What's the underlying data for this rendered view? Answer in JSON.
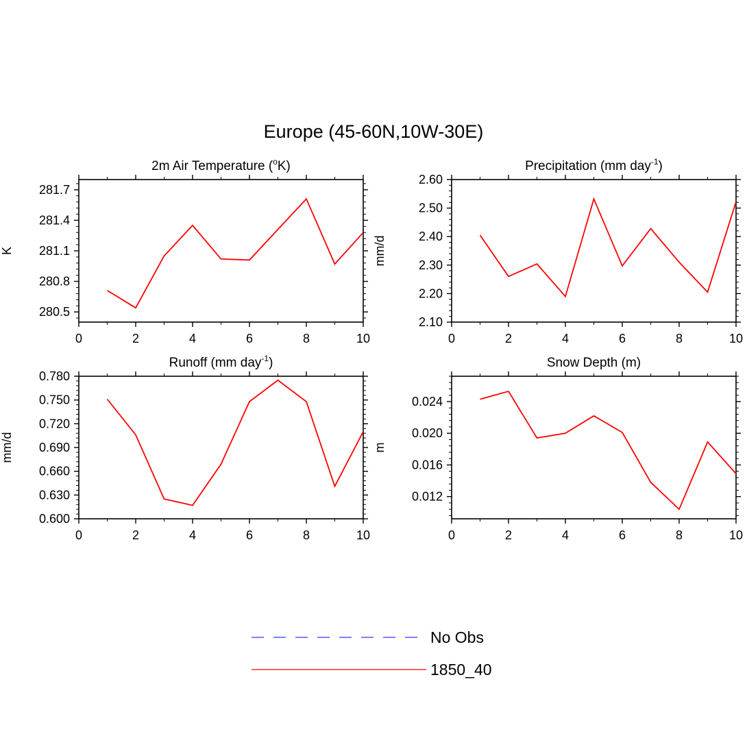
{
  "figure_title": "Europe (45-60N,10W-30E)",
  "legend": {
    "items": [
      {
        "label": "No Obs",
        "color": "#3333ff",
        "dashed": true
      },
      {
        "label": "1850_40",
        "color": "#ff0000",
        "dashed": false
      }
    ]
  },
  "chart_data": [
    {
      "type": "line",
      "title": "2m Air Temperature (",
      "title_sup": "o",
      "title_end": "K)",
      "ylabel": "K",
      "xlim": [
        0,
        10
      ],
      "ylim": [
        280.4,
        281.8
      ],
      "xticks": [
        "0",
        "2",
        "4",
        "6",
        "8",
        "10"
      ],
      "yticks": [
        "280.5",
        "280.8",
        "281.1",
        "281.4",
        "281.7"
      ],
      "x": [
        1,
        2,
        3,
        4,
        5,
        6,
        7,
        8,
        9,
        10
      ],
      "series": [
        {
          "name": "1850_40",
          "color": "#ff0000",
          "values": [
            280.71,
            280.54,
            281.05,
            281.35,
            281.02,
            281.01,
            281.31,
            281.61,
            280.97,
            281.28
          ]
        }
      ]
    },
    {
      "type": "line",
      "title": "Precipitation (mm day",
      "title_sup": "-1",
      "title_end": ")",
      "ylabel": "mm/d",
      "xlim": [
        0,
        10
      ],
      "ylim": [
        2.1,
        2.6
      ],
      "xticks": [
        "0",
        "2",
        "4",
        "6",
        "8",
        "10"
      ],
      "yticks": [
        "2.10",
        "2.20",
        "2.30",
        "2.40",
        "2.50",
        "2.60"
      ],
      "x": [
        1,
        2,
        3,
        4,
        5,
        6,
        7,
        8,
        9,
        10
      ],
      "series": [
        {
          "name": "1850_40",
          "color": "#ff0000",
          "values": [
            2.405,
            2.26,
            2.304,
            2.19,
            2.532,
            2.297,
            2.428,
            2.31,
            2.205,
            2.522
          ]
        }
      ]
    },
    {
      "type": "line",
      "title": "Runoff (mm day",
      "title_sup": "-1",
      "title_end": ")",
      "ylabel": "mm/d",
      "xlim": [
        0,
        10
      ],
      "ylim": [
        0.6,
        0.78
      ],
      "xticks": [
        "0",
        "2",
        "4",
        "6",
        "8",
        "10"
      ],
      "yticks": [
        "0.600",
        "0.630",
        "0.660",
        "0.690",
        "0.720",
        "0.750",
        "0.780"
      ],
      "x": [
        1,
        2,
        3,
        4,
        5,
        6,
        7,
        8,
        9,
        10
      ],
      "series": [
        {
          "name": "1850_40",
          "color": "#ff0000",
          "values": [
            0.751,
            0.706,
            0.625,
            0.617,
            0.669,
            0.748,
            0.775,
            0.748,
            0.641,
            0.71
          ]
        }
      ]
    },
    {
      "type": "line",
      "title": "Snow Depth (m)",
      "title_sup": "",
      "title_end": "",
      "ylabel": "m",
      "xlim": [
        0,
        10
      ],
      "ylim": [
        0.0092,
        0.0272
      ],
      "xticks": [
        "0",
        "2",
        "4",
        "6",
        "8",
        "10"
      ],
      "yticks": [
        "0.012",
        "0.016",
        "0.020",
        "0.024"
      ],
      "x": [
        1,
        2,
        3,
        4,
        5,
        6,
        7,
        8,
        9,
        10
      ],
      "series": [
        {
          "name": "1850_40",
          "color": "#ff0000",
          "values": [
            0.0243,
            0.0253,
            0.0194,
            0.02,
            0.0222,
            0.0201,
            0.0138,
            0.0104,
            0.0189,
            0.0149
          ]
        }
      ]
    }
  ]
}
